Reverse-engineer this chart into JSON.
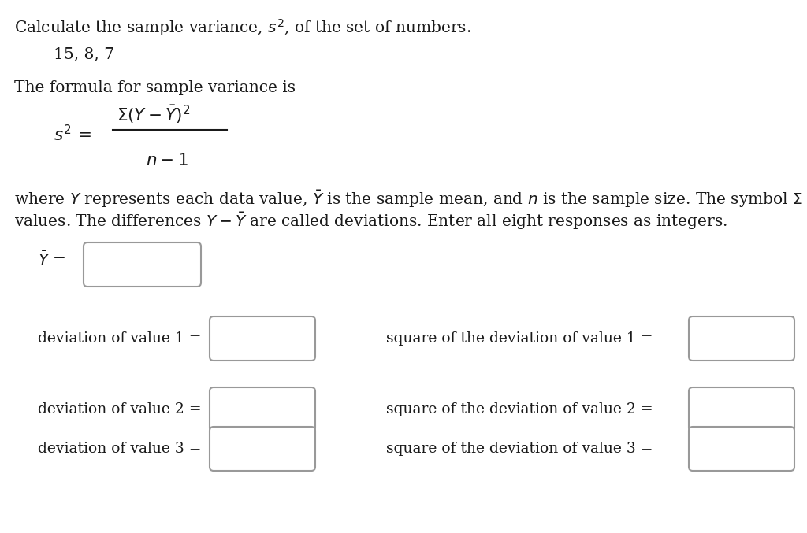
{
  "background_color": "#ffffff",
  "title_line": "Calculate the sample variance, $s^2$, of the set of numbers.",
  "numbers_line": "15, 8, 7",
  "formula_intro": "The formula for sample variance is",
  "formula_lhs": "$s^2\\, =$",
  "formula_numerator": "$\\Sigma(Y - \\bar{Y})^2$",
  "formula_denominator": "$n - 1$",
  "explanation_line1": "where $Y$ represents each data value, $\\bar{Y}$ is the sample mean, and $n$ is the sample size. The symbol $\\Sigma$ means sum up the",
  "explanation_line2": "values. The differences $Y - \\bar{Y}$ are called deviations. Enter all eight responses as integers.",
  "mean_label": "$\\bar{Y}$ =",
  "deviation_labels": [
    "deviation of value 1 =",
    "deviation of value 2 =",
    "deviation of value 3 ="
  ],
  "square_labels": [
    "square of the deviation of value 1 =",
    "square of the deviation of value 2 =",
    "square of the deviation of value 3 ="
  ],
  "text_color": "#1a1a1a",
  "box_edge_color": "#999999",
  "box_face_color": "#ffffff",
  "font_size_main": 14.5,
  "font_size_small": 13.5
}
